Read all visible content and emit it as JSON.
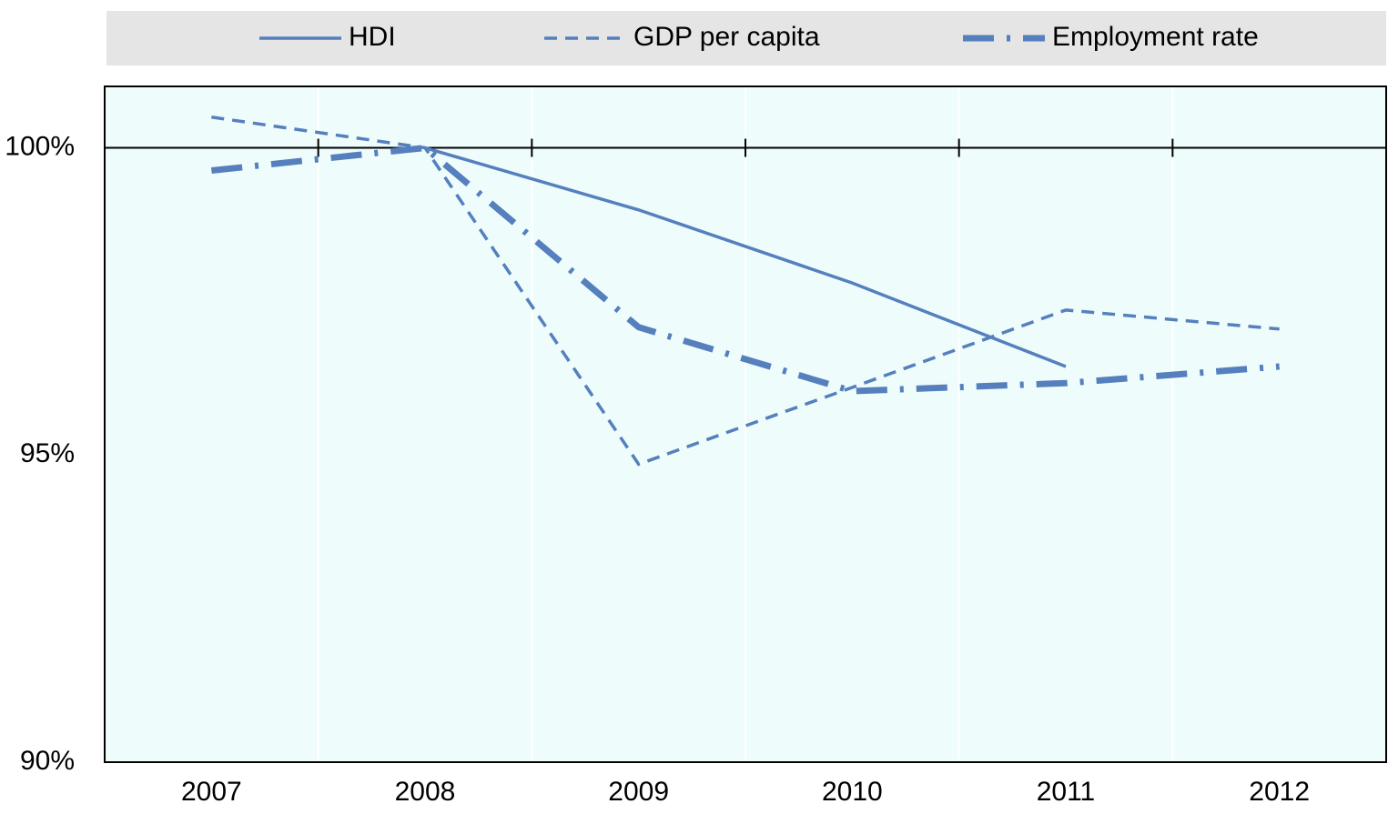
{
  "chart_data": {
    "type": "line",
    "categories": [
      "2007",
      "2008",
      "2009",
      "2010",
      "2011",
      "2012"
    ],
    "series": [
      {
        "name": "HDI",
        "color": "#5580bd",
        "linestyle": "solid",
        "values": [
          null,
          100,
          98.99,
          97.8,
          96.44,
          null
        ]
      },
      {
        "name": "GDP per capita",
        "color": "#5580bd",
        "linestyle": "dashed",
        "values": [
          100.5,
          100,
          94.85,
          96.1,
          97.36,
          97.05
        ]
      },
      {
        "name": "Employment rate",
        "color": "#5580bd",
        "linestyle": "dashdot",
        "values": [
          99.63,
          100,
          97.08,
          96.04,
          96.17,
          96.44
        ]
      }
    ],
    "ylim": [
      90,
      101
    ],
    "yticks": [
      {
        "value": 90,
        "label": "90%"
      },
      {
        "value": 95,
        "label": "95%"
      },
      {
        "value": 100,
        "label": "100%"
      }
    ],
    "reference_line": 100,
    "legend": "top",
    "background": "#effcfc"
  }
}
